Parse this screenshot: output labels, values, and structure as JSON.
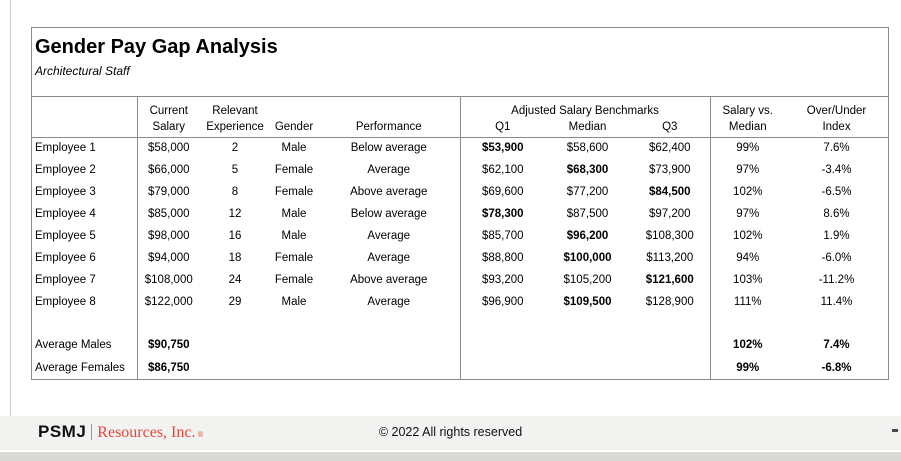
{
  "page": {
    "title": "Gender Pay Gap Analysis",
    "subtitle": "Architectural Staff"
  },
  "table": {
    "headers": {
      "current_line1": "Current",
      "current_line2": "Salary",
      "relevant_line1": "Relevant",
      "relevant_line2": "Experience",
      "gender": "Gender",
      "performance": "Performance",
      "benchmarks_group": "Adjusted Salary Benchmarks",
      "q1": "Q1",
      "median": "Median",
      "q3": "Q3",
      "salary_vs_line1": "Salary vs.",
      "salary_vs_line2": "Median",
      "over_under_line1": "Over/Under",
      "over_under_line2": "Index"
    },
    "rows": [
      {
        "name": "Employee 1",
        "salary": "$58,000",
        "experience": "2",
        "gender": "Male",
        "performance": "Below average",
        "q1": "$53,900",
        "median": "$58,600",
        "q3": "$62,400",
        "salary_vs_median": "99%",
        "over_under": "7.6%",
        "bold": "q1"
      },
      {
        "name": "Employee 2",
        "salary": "$66,000",
        "experience": "5",
        "gender": "Female",
        "performance": "Average",
        "q1": "$62,100",
        "median": "$68,300",
        "q3": "$73,900",
        "salary_vs_median": "97%",
        "over_under": "-3.4%",
        "bold": "median"
      },
      {
        "name": "Employee 3",
        "salary": "$79,000",
        "experience": "8",
        "gender": "Female",
        "performance": "Above average",
        "q1": "$69,600",
        "median": "$77,200",
        "q3": "$84,500",
        "salary_vs_median": "102%",
        "over_under": "-6.5%",
        "bold": "q3"
      },
      {
        "name": "Employee 4",
        "salary": "$85,000",
        "experience": "12",
        "gender": "Male",
        "performance": "Below average",
        "q1": "$78,300",
        "median": "$87,500",
        "q3": "$97,200",
        "salary_vs_median": "97%",
        "over_under": "8.6%",
        "bold": "q1"
      },
      {
        "name": "Employee 5",
        "salary": "$98,000",
        "experience": "16",
        "gender": "Male",
        "performance": "Average",
        "q1": "$85,700",
        "median": "$96,200",
        "q3": "$108,300",
        "salary_vs_median": "102%",
        "over_under": "1.9%",
        "bold": "median"
      },
      {
        "name": "Employee 6",
        "salary": "$94,000",
        "experience": "18",
        "gender": "Female",
        "performance": "Average",
        "q1": "$88,800",
        "median": "$100,000",
        "q3": "$113,200",
        "salary_vs_median": "94%",
        "over_under": "-6.0%",
        "bold": "median"
      },
      {
        "name": "Employee 7",
        "salary": "$108,000",
        "experience": "24",
        "gender": "Female",
        "performance": "Above average",
        "q1": "$93,200",
        "median": "$105,200",
        "q3": "$121,600",
        "salary_vs_median": "103%",
        "over_under": "-11.2%",
        "bold": "q3"
      },
      {
        "name": "Employee 8",
        "salary": "$122,000",
        "experience": "29",
        "gender": "Male",
        "performance": "Average",
        "q1": "$96,900",
        "median": "$109,500",
        "q3": "$128,900",
        "salary_vs_median": "111%",
        "over_under": "11.4%",
        "bold": "median"
      }
    ],
    "summary": [
      {
        "name": "Average Males",
        "salary": "$90,750",
        "salary_vs_median": "102%",
        "over_under": "7.4%"
      },
      {
        "name": "Average Females",
        "salary": "$86,750",
        "salary_vs_median": "99%",
        "over_under": "-6.8%"
      }
    ]
  },
  "footer": {
    "logo_psmj": "PSMJ",
    "logo_resources": "Resources, Inc.",
    "logo_reg": "®",
    "copyright": "© 2022 All rights reserved",
    "brand_red": "#e8453c"
  }
}
